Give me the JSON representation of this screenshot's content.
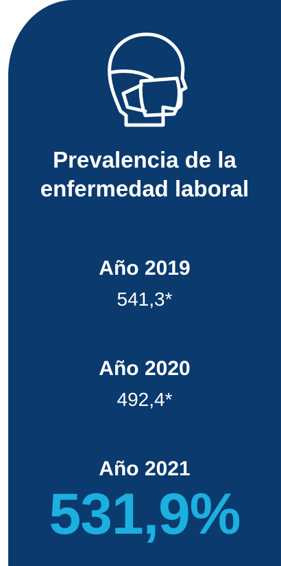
{
  "title": "Prevalencia de la enfermedad laboral",
  "items": [
    {
      "label": "Año 2019",
      "value": "541,3*"
    },
    {
      "label": "Año 2020",
      "value": "492,4*"
    },
    {
      "label": "Año 2021",
      "value": "531,9%"
    }
  ]
}
